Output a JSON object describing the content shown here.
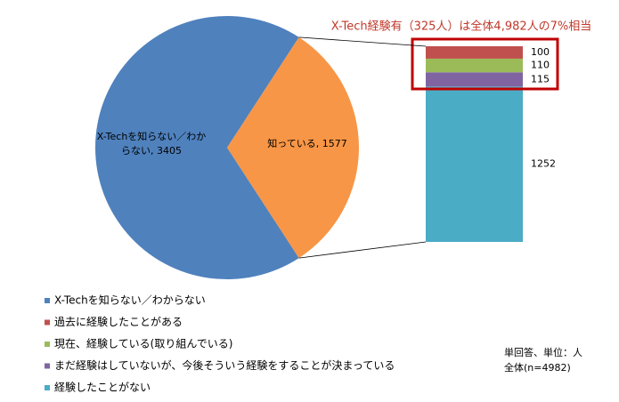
{
  "chart_data": {
    "type": "pie-of-bar",
    "title": "X-Tech経験有（325人）は全体4,982人の7%相当",
    "pie": {
      "categories": [
        "X-Techを知らない／わからない",
        "知っている"
      ],
      "values": [
        3405,
        1577
      ],
      "value_labels": [
        "X-Techを知らない／わからない, 3405",
        "知っている, 1577"
      ],
      "colors": [
        "#4f81bd",
        "#f79646"
      ]
    },
    "bar": {
      "series": [
        {
          "name": "過去に経験したことがある",
          "color": "#c0504d",
          "value": 100
        },
        {
          "name": "現在、経験している(取り組んでいる)",
          "color": "#9bbb59",
          "value": 110
        },
        {
          "name": "まだ経験はしていないが、今後そういう経験をすることが決まっている",
          "color": "#8064a2",
          "value": 115
        },
        {
          "name": "経験したことがない",
          "color": "#4bacc6",
          "value": 1252
        }
      ]
    },
    "notes": [
      "単回答、単位：人",
      "全体(n=4982)"
    ]
  }
}
